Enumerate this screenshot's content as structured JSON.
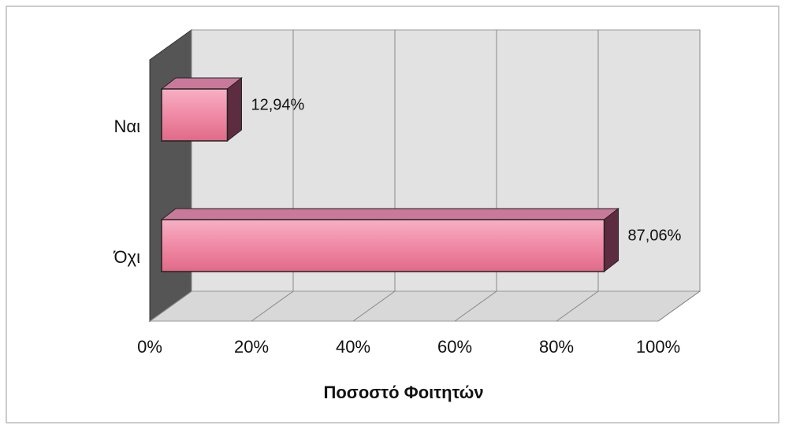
{
  "chart_data": {
    "type": "bar3d_horizontal",
    "categories": [
      "Ναι",
      "Όχι"
    ],
    "values": [
      12.94,
      87.06
    ],
    "value_labels": [
      "12,94%",
      "87,06%"
    ],
    "color": "#ec7f9c",
    "xlim": [
      0,
      100
    ],
    "xticks": [
      {
        "value": 0,
        "label": "0%"
      },
      {
        "value": 20,
        "label": "20%"
      },
      {
        "value": 40,
        "label": "40%"
      },
      {
        "value": 60,
        "label": "60%"
      },
      {
        "value": 80,
        "label": "80%"
      },
      {
        "value": 100,
        "label": "100%"
      }
    ],
    "x_label": "Ποσοστό Φοιτητών",
    "grid": true
  }
}
